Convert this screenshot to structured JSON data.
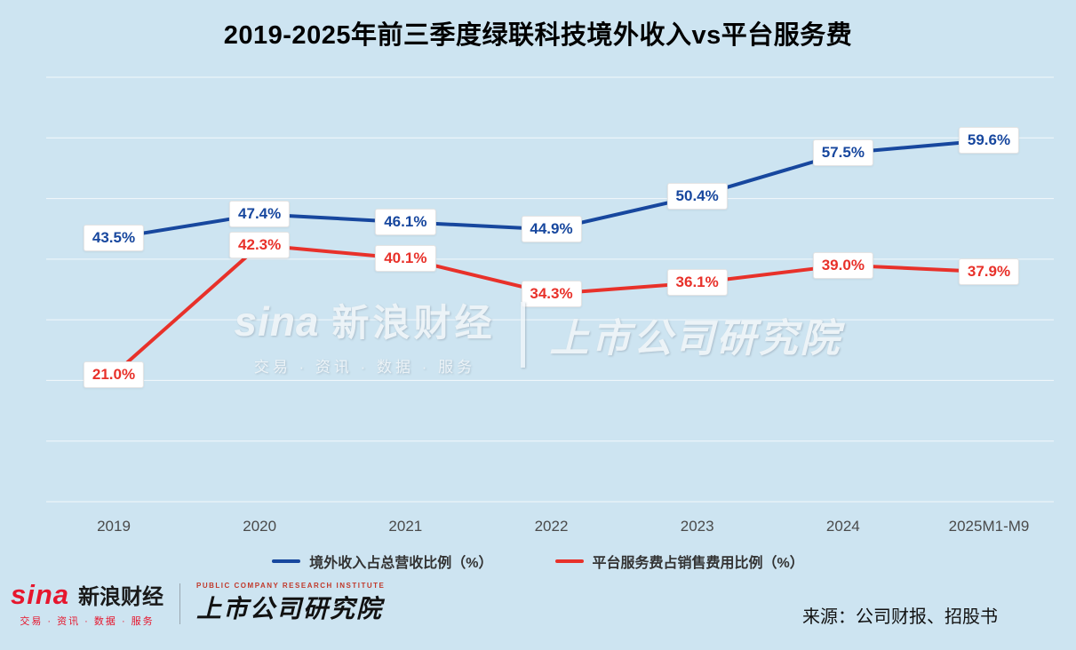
{
  "title": "2019-2025年前三季度绿联科技境外收入vs平台服务费",
  "chart_data": {
    "type": "line",
    "categories": [
      "2019",
      "2020",
      "2021",
      "2022",
      "2023",
      "2024",
      "2025M1-M9"
    ],
    "series": [
      {
        "name": "境外收入占总营收比例（%）",
        "color": "#17479e",
        "values": [
          43.5,
          47.4,
          46.1,
          44.9,
          50.4,
          57.5,
          59.6
        ],
        "labels": [
          "43.5%",
          "47.4%",
          "46.1%",
          "44.9%",
          "50.4%",
          "57.5%",
          "59.6%"
        ]
      },
      {
        "name": "平台服务费占销售费用比例（%）",
        "color": "#e8312a",
        "values": [
          21.0,
          42.3,
          40.1,
          34.3,
          36.1,
          39.0,
          37.9
        ],
        "labels": [
          "21.0%",
          "42.3%",
          "40.1%",
          "34.3%",
          "36.1%",
          "39.0%",
          "37.9%"
        ]
      }
    ],
    "ylim": [
      0,
      70
    ],
    "grid": true,
    "legend_position": "bottom"
  },
  "colors": {
    "background": "#cde4f1",
    "series_blue": "#17479e",
    "series_red": "#e8312a"
  },
  "watermark": {
    "sina": "sina",
    "sina_cn": "新浪财经",
    "tagline": "交易 · 资讯 · 数据 · 服务",
    "divider": "",
    "institute_cn": "上市公司研究院"
  },
  "footer": {
    "sina_logo": "sina",
    "sina_cn": "新浪财经",
    "tagline": "交易 · 资讯 · 数据 · 服务",
    "institute_en": "PUBLIC COMPANY RESEARCH INSTITUTE",
    "institute_cn": "上市公司研究院",
    "source": "来源：公司财报、招股书"
  }
}
